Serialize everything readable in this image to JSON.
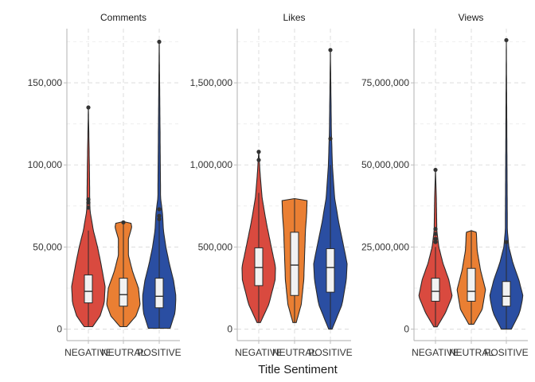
{
  "chart_data": {
    "type": "violin",
    "xlabel": "Title Sentiment",
    "categories": [
      "NEGATIVE",
      "NEUTRAL",
      "POSITIVE"
    ],
    "colors": {
      "NEGATIVE": "#d94a3f",
      "NEUTRAL": "#ea7f33",
      "POSITIVE": "#2a4ea2"
    },
    "grid": true,
    "panels": [
      {
        "title": "Comments",
        "ylim": [
          -7000,
          183000
        ],
        "yticks": [
          0,
          50000,
          100000,
          150000
        ],
        "ytick_labels": [
          "0",
          "50,000",
          "100,000",
          "150,000"
        ],
        "groups": [
          {
            "category": "NEGATIVE",
            "min": 1500,
            "q1": 16000,
            "median": 23000,
            "q3": 33000,
            "max": 60000,
            "outliers": [
              74000,
              77000,
              79000,
              135000
            ],
            "density_max": 26000,
            "profile": [
              [
                1500,
                0.25
              ],
              [
                8000,
                0.7
              ],
              [
                16000,
                0.95
              ],
              [
                26000,
                1.0
              ],
              [
                40000,
                0.75
              ],
              [
                50000,
                0.55
              ],
              [
                60000,
                0.3
              ],
              [
                72000,
                0.1
              ],
              [
                80000,
                0.08
              ],
              [
                100000,
                0.06
              ],
              [
                135000,
                0.0
              ]
            ]
          },
          {
            "category": "NEUTRAL",
            "min": 1500,
            "q1": 14000,
            "median": 21000,
            "q3": 31000,
            "max": 64000,
            "outliers": [
              65000
            ],
            "density_max": 16000,
            "profile": [
              [
                1500,
                0.2
              ],
              [
                8000,
                0.75
              ],
              [
                15000,
                1.0
              ],
              [
                25000,
                0.9
              ],
              [
                35000,
                0.55
              ],
              [
                45000,
                0.3
              ],
              [
                55000,
                0.3
              ],
              [
                62000,
                0.5
              ],
              [
                65000,
                0.45
              ],
              [
                65500,
                0.0
              ]
            ]
          },
          {
            "category": "POSITIVE",
            "min": 500,
            "q1": 13000,
            "median": 20000,
            "q3": 31000,
            "max": 66000,
            "outliers": [
              67000,
              69000,
              73000,
              175000
            ],
            "density_max": 16000,
            "profile": [
              [
                500,
                0.65
              ],
              [
                10000,
                0.95
              ],
              [
                20000,
                1.0
              ],
              [
                30000,
                0.85
              ],
              [
                40000,
                0.6
              ],
              [
                50000,
                0.4
              ],
              [
                60000,
                0.25
              ],
              [
                70000,
                0.2
              ],
              [
                80000,
                0.08
              ],
              [
                120000,
                0.05
              ],
              [
                175000,
                0.0
              ]
            ]
          }
        ]
      },
      {
        "title": "Likes",
        "ylim": [
          -70000,
          1830000
        ],
        "yticks": [
          0,
          500000,
          1000000,
          1500000
        ],
        "ytick_labels": [
          "0",
          "500,000",
          "1,000,000",
          "1,500,000"
        ],
        "groups": [
          {
            "category": "NEGATIVE",
            "min": 40000,
            "q1": 265000,
            "median": 375000,
            "q3": 495000,
            "max": 830000,
            "outliers": [
              1030000,
              1080000
            ],
            "density_max": 16000,
            "profile": [
              [
                40000,
                0.1
              ],
              [
                150000,
                0.6
              ],
              [
                300000,
                0.98
              ],
              [
                380000,
                1.0
              ],
              [
                500000,
                0.75
              ],
              [
                650000,
                0.45
              ],
              [
                800000,
                0.2
              ],
              [
                950000,
                0.08
              ],
              [
                1085000,
                0.0
              ]
            ]
          },
          {
            "category": "NEUTRAL",
            "min": 40000,
            "q1": 205000,
            "median": 390000,
            "q3": 590000,
            "max": 795000,
            "outliers": [],
            "density_max": 16000,
            "profile": [
              [
                40000,
                0.1
              ],
              [
                150000,
                0.4
              ],
              [
                300000,
                0.55
              ],
              [
                450000,
                0.6
              ],
              [
                600000,
                0.65
              ],
              [
                700000,
                0.72
              ],
              [
                790000,
                0.75
              ],
              [
                795000,
                0.0
              ]
            ]
          },
          {
            "category": "POSITIVE",
            "min": 0,
            "q1": 225000,
            "median": 375000,
            "q3": 490000,
            "max": 1000000,
            "outliers": [
              1160000,
              1700000
            ],
            "density_max": 16000,
            "profile": [
              [
                0,
                0.1
              ],
              [
                150000,
                0.7
              ],
              [
                300000,
                0.95
              ],
              [
                400000,
                1.0
              ],
              [
                500000,
                0.8
              ],
              [
                650000,
                0.5
              ],
              [
                800000,
                0.25
              ],
              [
                1000000,
                0.12
              ],
              [
                1200000,
                0.06
              ],
              [
                1700000,
                0.0
              ]
            ]
          }
        ]
      },
      {
        "title": "Views",
        "ylim": [
          -3500000,
          91500000
        ],
        "yticks": [
          0,
          25000000,
          50000000,
          75000000
        ],
        "ytick_labels": [
          "0",
          "25,000,000",
          "50,000,000",
          "75,000,000"
        ],
        "groups": [
          {
            "category": "NEGATIVE",
            "min": 700000,
            "q1": 8500000,
            "median": 11500000,
            "q3": 15500000,
            "max": 25000000,
            "outliers": [
              26500000,
              27500000,
              29000000,
              30500000,
              48500000
            ],
            "density_max": 16000000,
            "profile": [
              [
                700000,
                0.1
              ],
              [
                5000000,
                0.6
              ],
              [
                10000000,
                1.0
              ],
              [
                15000000,
                0.8
              ],
              [
                20000000,
                0.45
              ],
              [
                25000000,
                0.2
              ],
              [
                30000000,
                0.08
              ],
              [
                40000000,
                0.05
              ],
              [
                48500000,
                0.0
              ]
            ]
          },
          {
            "category": "NEUTRAL",
            "min": 1500000,
            "q1": 8500000,
            "median": 11500000,
            "q3": 18500000,
            "max": 30000000,
            "outliers": [],
            "density_max": 16000000,
            "profile": [
              [
                1500000,
                0.15
              ],
              [
                6000000,
                0.65
              ],
              [
                12000000,
                0.85
              ],
              [
                18000000,
                0.55
              ],
              [
                24000000,
                0.35
              ],
              [
                29500000,
                0.3
              ],
              [
                30000000,
                0.0
              ]
            ]
          },
          {
            "category": "POSITIVE",
            "min": 0,
            "q1": 7000000,
            "median": 10000000,
            "q3": 14500000,
            "max": 26000000,
            "outliers": [
              26500000,
              88000000
            ],
            "density_max": 16000000,
            "profile": [
              [
                0,
                0.3
              ],
              [
                5000000,
                0.8
              ],
              [
                10000000,
                1.0
              ],
              [
                15000000,
                0.75
              ],
              [
                20000000,
                0.4
              ],
              [
                25000000,
                0.15
              ],
              [
                30000000,
                0.06
              ],
              [
                50000000,
                0.04
              ],
              [
                88000000,
                0.0
              ]
            ]
          }
        ]
      }
    ]
  }
}
